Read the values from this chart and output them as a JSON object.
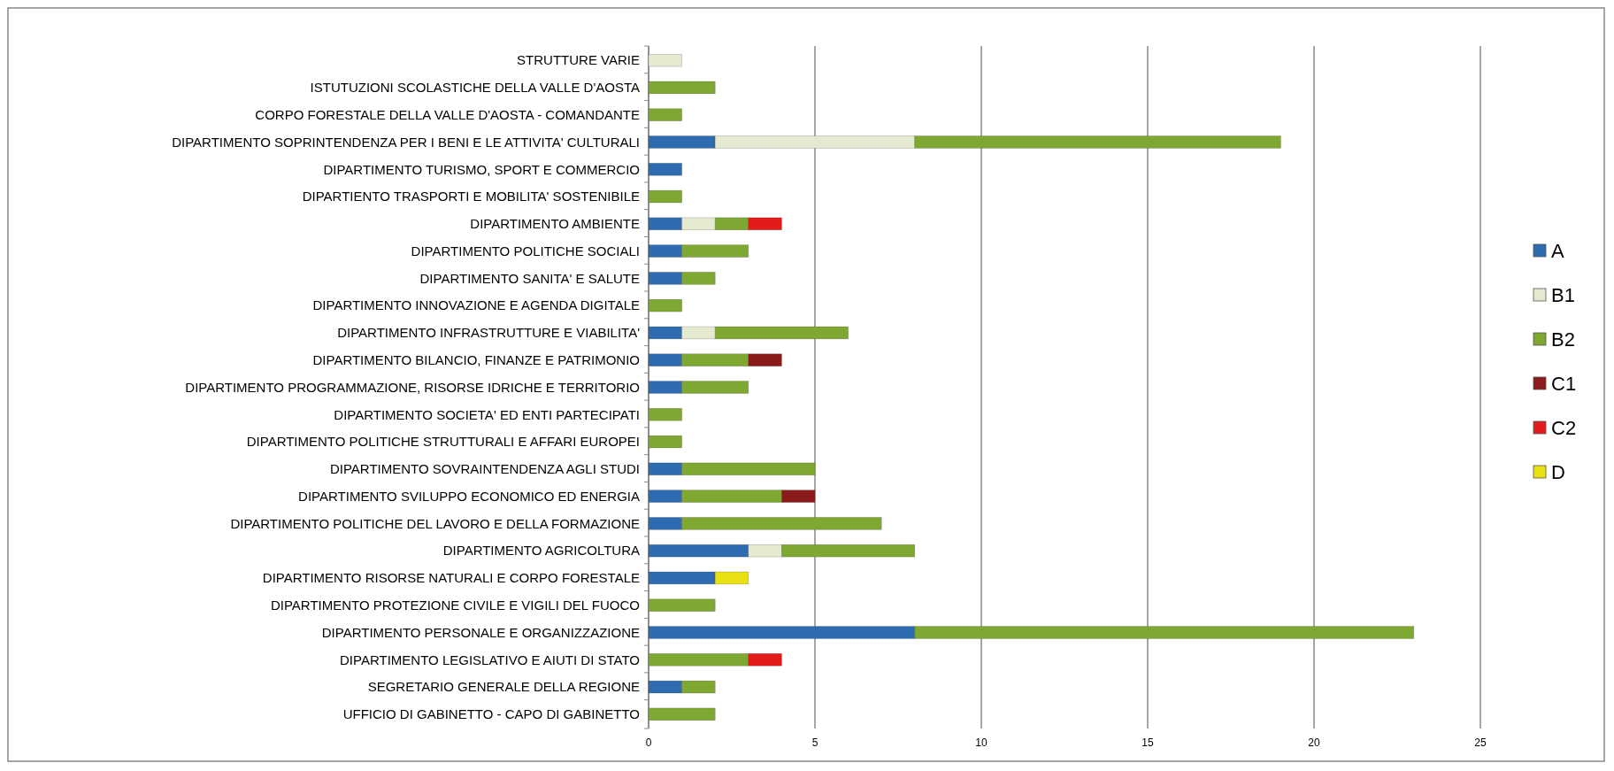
{
  "chart_data": {
    "type": "bar",
    "orientation": "horizontal",
    "stacked": true,
    "categories": [
      "STRUTTURE VARIE",
      "ISTUTUZIONI SCOLASTICHE DELLA VALLE D'AOSTA",
      "CORPO FORESTALE DELLA VALLE D'AOSTA - COMANDANTE",
      "DIPARTIMENTO SOPRINTENDENZA PER I BENI E LE ATTIVITA' CULTURALI",
      "DIPARTIMENTO TURISMO, SPORT E COMMERCIO",
      "DIPARTIENTO TRASPORTI E MOBILITA' SOSTENIBILE",
      "DIPARTIMENTO AMBIENTE",
      "DIPARTIMENTO POLITICHE SOCIALI",
      "DIPARTIMENTO SANITA' E SALUTE",
      "DIPARTIMENTO INNOVAZIONE E AGENDA DIGITALE",
      "DIPARTIMENTO INFRASTRUTTURE E VIABILITA'",
      "DIPARTIMENTO BILANCIO, FINANZE E PATRIMONIO",
      "DIPARTIMENTO PROGRAMMAZIONE, RISORSE IDRICHE E TERRITORIO",
      "DIPARTIMENTO SOCIETA' ED ENTI PARTECIPATI",
      "DIPARTIMENTO POLITICHE STRUTTURALI E AFFARI EUROPEI",
      "DIPARTIMENTO SOVRAINTENDENZA AGLI STUDI",
      "DIPARTIMENTO SVILUPPO ECONOMICO ED ENERGIA",
      "DIPARTIMENTO POLITICHE DEL LAVORO E DELLA FORMAZIONE",
      "DIPARTIMENTO AGRICOLTURA",
      "DIPARTIMENTO RISORSE NATURALI E CORPO FORESTALE",
      "DIPARTIMENTO PROTEZIONE CIVILE E VIGILI DEL FUOCO",
      "DIPARTIMENTO PERSONALE E ORGANIZZAZIONE",
      "DIPARTIMENTO LEGISLATIVO E AIUTI DI STATO",
      "SEGRETARIO GENERALE DELLA REGIONE",
      "UFFICIO DI GABINETTO - CAPO DI GABINETTO"
    ],
    "series": [
      {
        "name": "A",
        "color": "#2e6bb0",
        "values": [
          null,
          null,
          null,
          2,
          1,
          null,
          1,
          1,
          1,
          null,
          1,
          1,
          1,
          null,
          null,
          1,
          1,
          1,
          3,
          2,
          null,
          8,
          null,
          1,
          null
        ]
      },
      {
        "name": "B1",
        "color": "#e4ead0",
        "values": [
          1,
          null,
          null,
          6,
          null,
          null,
          1,
          null,
          null,
          null,
          1,
          null,
          null,
          null,
          null,
          null,
          null,
          null,
          1,
          null,
          null,
          null,
          null,
          null,
          null
        ]
      },
      {
        "name": "B2",
        "color": "#7ea832",
        "values": [
          null,
          2,
          1,
          11,
          null,
          1,
          1,
          2,
          1,
          1,
          4,
          2,
          2,
          1,
          1,
          4,
          3,
          6,
          4,
          null,
          2,
          15,
          3,
          1,
          2
        ]
      },
      {
        "name": "C1",
        "color": "#8b1a1a",
        "values": [
          null,
          null,
          null,
          null,
          null,
          null,
          null,
          null,
          null,
          null,
          null,
          1,
          null,
          null,
          null,
          null,
          1,
          null,
          null,
          null,
          null,
          null,
          null,
          null,
          null
        ]
      },
      {
        "name": "C2",
        "color": "#e31b1b",
        "values": [
          null,
          null,
          null,
          null,
          null,
          null,
          1,
          null,
          null,
          null,
          null,
          null,
          null,
          null,
          null,
          null,
          null,
          null,
          null,
          null,
          null,
          null,
          1,
          null,
          null
        ]
      },
      {
        "name": "D",
        "color": "#e8e010",
        "values": [
          null,
          null,
          null,
          null,
          null,
          null,
          null,
          null,
          null,
          null,
          null,
          null,
          null,
          null,
          null,
          null,
          null,
          null,
          null,
          1,
          null,
          null,
          null,
          null,
          null
        ]
      }
    ],
    "xlim": [
      0,
      25
    ],
    "xticks": [
      0,
      5,
      10,
      15,
      20,
      25
    ],
    "grid": "x",
    "legend": "right"
  }
}
